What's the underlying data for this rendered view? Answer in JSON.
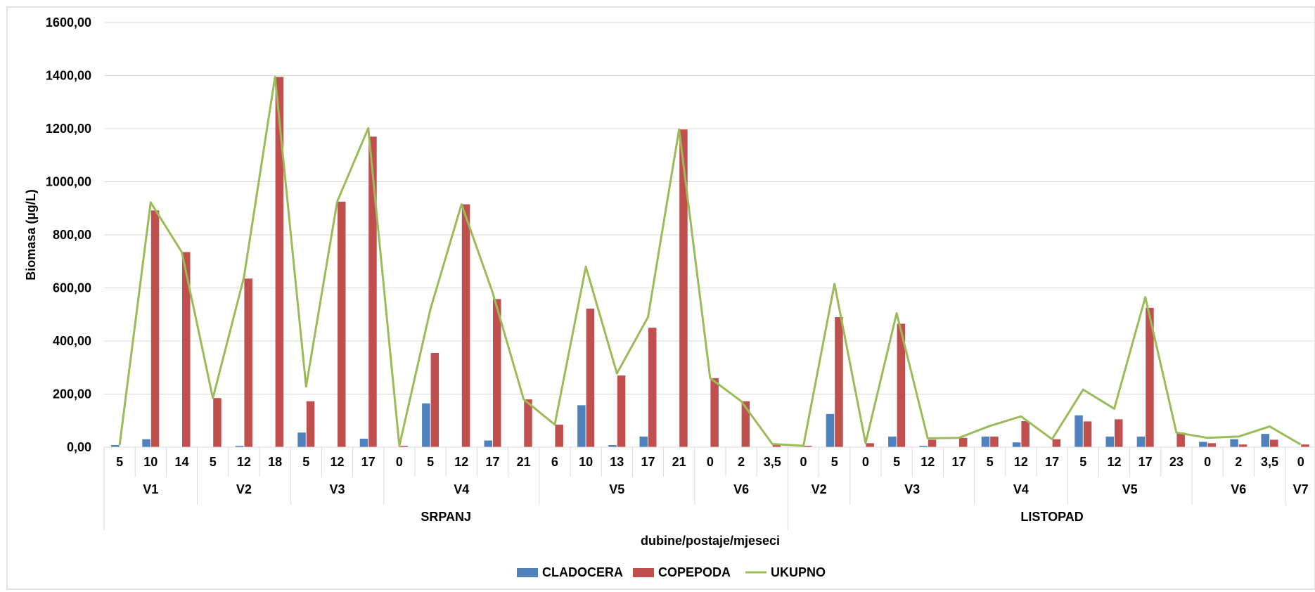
{
  "chart_data": {
    "type": "bar",
    "ylabel": "Biomasa (µg/L)",
    "xlabel": "dubine/postaje/mjeseci",
    "ylim": [
      0,
      1600
    ],
    "y_ticks": [
      "0,00",
      "200,00",
      "400,00",
      "600,00",
      "800,00",
      "1000,00",
      "1200,00",
      "1400,00",
      "1600,00"
    ],
    "grid": true,
    "legend_position": "bottom",
    "categories": [
      "5",
      "10",
      "14",
      "5",
      "12",
      "18",
      "5",
      "12",
      "17",
      "0",
      "5",
      "12",
      "17",
      "21",
      "6",
      "10",
      "13",
      "17",
      "21",
      "0",
      "2",
      "3,5",
      "0",
      "5",
      "0",
      "5",
      "12",
      "17",
      "5",
      "12",
      "17",
      "5",
      "12",
      "17",
      "23",
      "0",
      "2",
      "3,5",
      "0"
    ],
    "stations": [
      {
        "label": "V1",
        "count": 3
      },
      {
        "label": "V2",
        "count": 3
      },
      {
        "label": "V3",
        "count": 3
      },
      {
        "label": "V4",
        "count": 5
      },
      {
        "label": "V5",
        "count": 5
      },
      {
        "label": "V6",
        "count": 3
      },
      {
        "label": "V2",
        "count": 2
      },
      {
        "label": "V3",
        "count": 4
      },
      {
        "label": "V4",
        "count": 3
      },
      {
        "label": "V5",
        "count": 4
      },
      {
        "label": "V6",
        "count": 3
      },
      {
        "label": "V7",
        "count": 1
      }
    ],
    "months": [
      {
        "label": "SRPANJ",
        "count": 22
      },
      {
        "label": "LISTOPAD",
        "count": 17
      }
    ],
    "series": [
      {
        "name": "CLADOCERA",
        "type": "bar",
        "color": "#4F81BD",
        "values": [
          8,
          30,
          0,
          0,
          5,
          0,
          55,
          0,
          32,
          0,
          165,
          0,
          25,
          0,
          0,
          158,
          8,
          40,
          0,
          0,
          0,
          0,
          0,
          125,
          0,
          40,
          5,
          0,
          40,
          18,
          0,
          120,
          40,
          40,
          0,
          20,
          30,
          50,
          0
        ]
      },
      {
        "name": "COPEPODA",
        "type": "bar",
        "color": "#C0504D",
        "values": [
          0,
          892,
          735,
          185,
          635,
          1395,
          173,
          925,
          1170,
          5,
          355,
          915,
          558,
          180,
          85,
          522,
          270,
          450,
          1197,
          260,
          173,
          12,
          5,
          490,
          15,
          465,
          28,
          35,
          40,
          98,
          30,
          97,
          105,
          525,
          55,
          15,
          10,
          28,
          10
        ]
      },
      {
        "name": "UKUPNO",
        "type": "line",
        "color": "#9BBB59",
        "values": [
          8,
          922,
          735,
          185,
          640,
          1395,
          228,
          925,
          1202,
          5,
          520,
          915,
          583,
          180,
          85,
          680,
          278,
          490,
          1197,
          260,
          173,
          12,
          5,
          615,
          15,
          505,
          33,
          35,
          80,
          116,
          30,
          217,
          145,
          565,
          55,
          35,
          40,
          78,
          10
        ]
      }
    ]
  }
}
